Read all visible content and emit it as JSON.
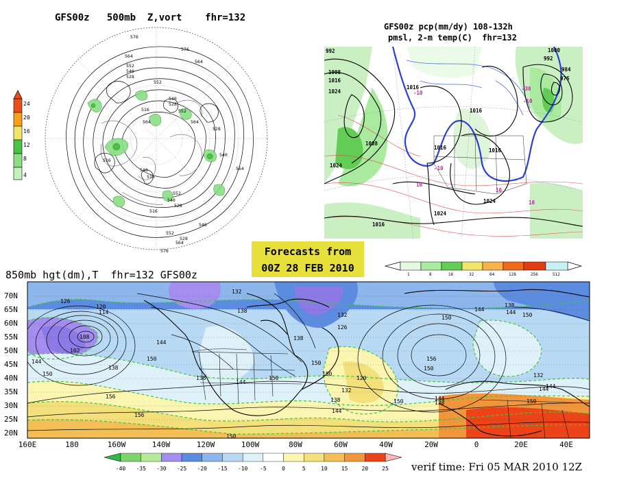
{
  "panel_500mb": {
    "title": "GFS00z   500mb  Z,vort    fhr=132",
    "legend_values": [
      "24",
      "20",
      "16",
      "12",
      "8",
      "4"
    ],
    "contour_labels": [
      "576",
      "576",
      "564",
      "552",
      "540",
      "528",
      "552",
      "564",
      "540",
      "528",
      "516",
      "504",
      "552",
      "516",
      "528",
      "540",
      "516",
      "540",
      "564",
      "552",
      "540",
      "528",
      "516",
      "540",
      "552",
      "528",
      "564",
      "576",
      "504"
    ]
  },
  "panel_precip": {
    "title_line1": "GFS00z pcp(mm/dy) 108-132h",
    "title_line2": "pmsl, 2-m temp(C)  fhr=132",
    "legend_values": [
      "1",
      "8",
      "16",
      "32",
      "64",
      "128",
      "256",
      "512"
    ],
    "isobar_labels": [
      "992",
      "1008",
      "1016",
      "1024",
      "1016",
      "1016",
      "1008",
      "1024",
      "1016",
      "1016",
      "1024",
      "1000",
      "992",
      "984",
      "976",
      "1016",
      "1024"
    ],
    "temp_labels": [
      "-10",
      "-10",
      "-10",
      "10",
      "10",
      "10",
      "-30"
    ]
  },
  "forecast_box": {
    "line1": "Forecasts from",
    "line2": "00Z 28 FEB 2010"
  },
  "panel_850mb": {
    "title": "850mb hgt(dm),T  fhr=132 GFS00z",
    "lat_labels": [
      "70N",
      "65N",
      "60N",
      "55N",
      "50N",
      "45N",
      "40N",
      "35N",
      "30N",
      "25N",
      "20N"
    ],
    "lon_labels": [
      "160E",
      "180",
      "160W",
      "140W",
      "120W",
      "100W",
      "80W",
      "60W",
      "40W",
      "20W",
      "0",
      "20E",
      "40E"
    ],
    "contour_labels": [
      "126",
      "120",
      "114",
      "108",
      "102",
      "144",
      "150",
      "150",
      "156",
      "156",
      "144",
      "138",
      "150",
      "132",
      "138",
      "138",
      "144",
      "150",
      "150",
      "138",
      "132",
      "126",
      "120",
      "132",
      "138",
      "144",
      "150",
      "150",
      "144",
      "156",
      "150",
      "138",
      "144",
      "150",
      "144",
      "138",
      "150",
      "144",
      "132",
      "144",
      "150"
    ],
    "legend_values": [
      "-40",
      "-35",
      "-30",
      "-25",
      "-20",
      "-15",
      "-10",
      "-5",
      "0",
      "5",
      "10",
      "15",
      "20",
      "25"
    ]
  },
  "verif": "verif time: Fri 05 MAR 2010 12Z",
  "colors": {
    "vort_legend": [
      "#e94f1b",
      "#f7a11a",
      "#f1e66a",
      "#4cc24b",
      "#89df85",
      "#c4f0bc"
    ],
    "precip_legend": [
      "#e3fae0",
      "#a9ea9f",
      "#62cc55",
      "#f1e66a",
      "#f7b24a",
      "#f06a1c",
      "#e43c12",
      "#c6f0f4"
    ],
    "temp_legend": [
      "#35b84a",
      "#7cd46a",
      "#b5ea9c",
      "#a38ef0",
      "#5c8ce0",
      "#8cb6ec",
      "#b8d9f3",
      "#dff1f8",
      "#ffffff",
      "#faf5b0",
      "#f3e07a",
      "#f2be55",
      "#f2963c",
      "#ec4318",
      "#ffb4b4"
    ]
  }
}
